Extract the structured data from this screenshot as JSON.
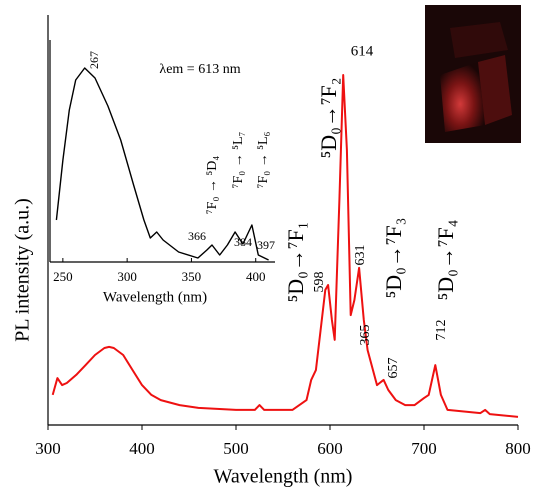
{
  "chart_data": [
    {
      "type": "line",
      "xlabel": "Wavelength (nm)",
      "ylabel": "PL intensity (a.u.)",
      "x": [
        305,
        310,
        315,
        320,
        330,
        340,
        350,
        360,
        365,
        370,
        380,
        390,
        400,
        410,
        420,
        440,
        460,
        500,
        520,
        525,
        530,
        560,
        575,
        580,
        585,
        590,
        595,
        598,
        602,
        605,
        610,
        614,
        618,
        622,
        626,
        631,
        636,
        640,
        650,
        657,
        662,
        670,
        680,
        690,
        700,
        705,
        712,
        718,
        725,
        760,
        765,
        770,
        800
      ],
      "values": [
        8.6,
        13.4,
        11.4,
        12,
        14.3,
        17.1,
        20,
        22,
        22.3,
        22,
        20,
        15.7,
        11.4,
        8.6,
        7.1,
        5.7,
        4.9,
        4.3,
        4.3,
        5.7,
        4.3,
        4.3,
        7.1,
        12.9,
        15.7,
        27.1,
        38.6,
        40,
        30,
        24.3,
        64.3,
        100,
        78.6,
        31.4,
        35.7,
        44.9,
        30,
        21.4,
        11.4,
        12.9,
        10,
        7.1,
        5.7,
        5.7,
        7.7,
        8.6,
        17.1,
        8.6,
        4.3,
        3.4,
        4.3,
        3.1,
        2.3
      ],
      "color": "#ee1111",
      "xlim": [
        300,
        800
      ],
      "xticks": [
        300,
        400,
        500,
        600,
        700,
        800
      ],
      "ylim": [
        0,
        100
      ],
      "peak_labels": [
        365,
        598,
        614,
        631,
        657,
        712
      ],
      "transition_labels": [
        "⁵D₀→⁷F₁",
        "⁵D₀→⁷F₂",
        "⁵D₀→⁷F₃",
        "⁵D₀→⁷F₄"
      ]
    },
    {
      "type": "line",
      "xlabel": "Wavelength (nm)",
      "annotation": "λem = 613 nm",
      "x": [
        245,
        250,
        255,
        260,
        267,
        275,
        285,
        295,
        305,
        313,
        318,
        323,
        328,
        340,
        355,
        362,
        366,
        372,
        378,
        384,
        390,
        397,
        402,
        410
      ],
      "values": [
        21,
        51,
        76,
        91,
        97,
        92,
        78,
        61,
        38.5,
        21,
        12,
        15,
        11,
        5,
        2,
        6,
        8.5,
        3.5,
        8.5,
        15,
        9,
        18.5,
        3.5,
        1
      ],
      "color": "#000000",
      "xlim": [
        240,
        415
      ],
      "xticks": [
        250,
        300,
        350,
        400
      ],
      "ylim": [
        0,
        100
      ],
      "peak_labels": [
        267,
        366,
        384,
        397
      ],
      "transition_labels": [
        "⁷F₀ → ⁵D₄",
        "⁷F₀ → ⁵L₇",
        "⁷F₀ → ⁵L₆"
      ]
    }
  ]
}
